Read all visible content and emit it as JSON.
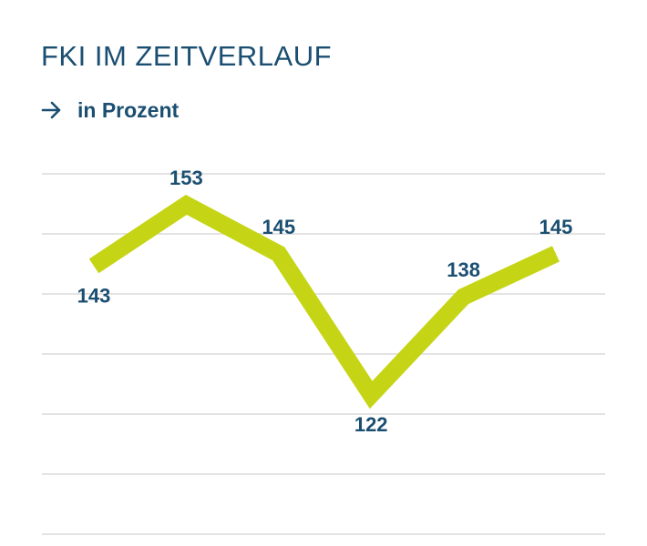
{
  "header": {
    "title": "FKI IM ZEITVERLAUF",
    "subtitle": "in Prozent",
    "subtitle_icon": "arrow-right-icon"
  },
  "colors": {
    "line": "#c5d515",
    "text": "#1b4f72",
    "grid": "#e3e3e3"
  },
  "chart_data": {
    "type": "line",
    "title": "FKI IM ZEITVERLAUF",
    "subtitle": "in Prozent",
    "xlabel": "",
    "ylabel": "",
    "x": [
      1,
      2,
      3,
      4,
      5,
      6
    ],
    "series": [
      {
        "values": [
          143,
          153,
          145,
          122,
          138,
          145
        ]
      }
    ],
    "data_labels": [
      "143",
      "153",
      "145",
      "122",
      "138",
      "145"
    ],
    "data_label_positions": [
      "below",
      "above",
      "above",
      "below",
      "above",
      "above"
    ],
    "grid": true,
    "legend": "none"
  }
}
